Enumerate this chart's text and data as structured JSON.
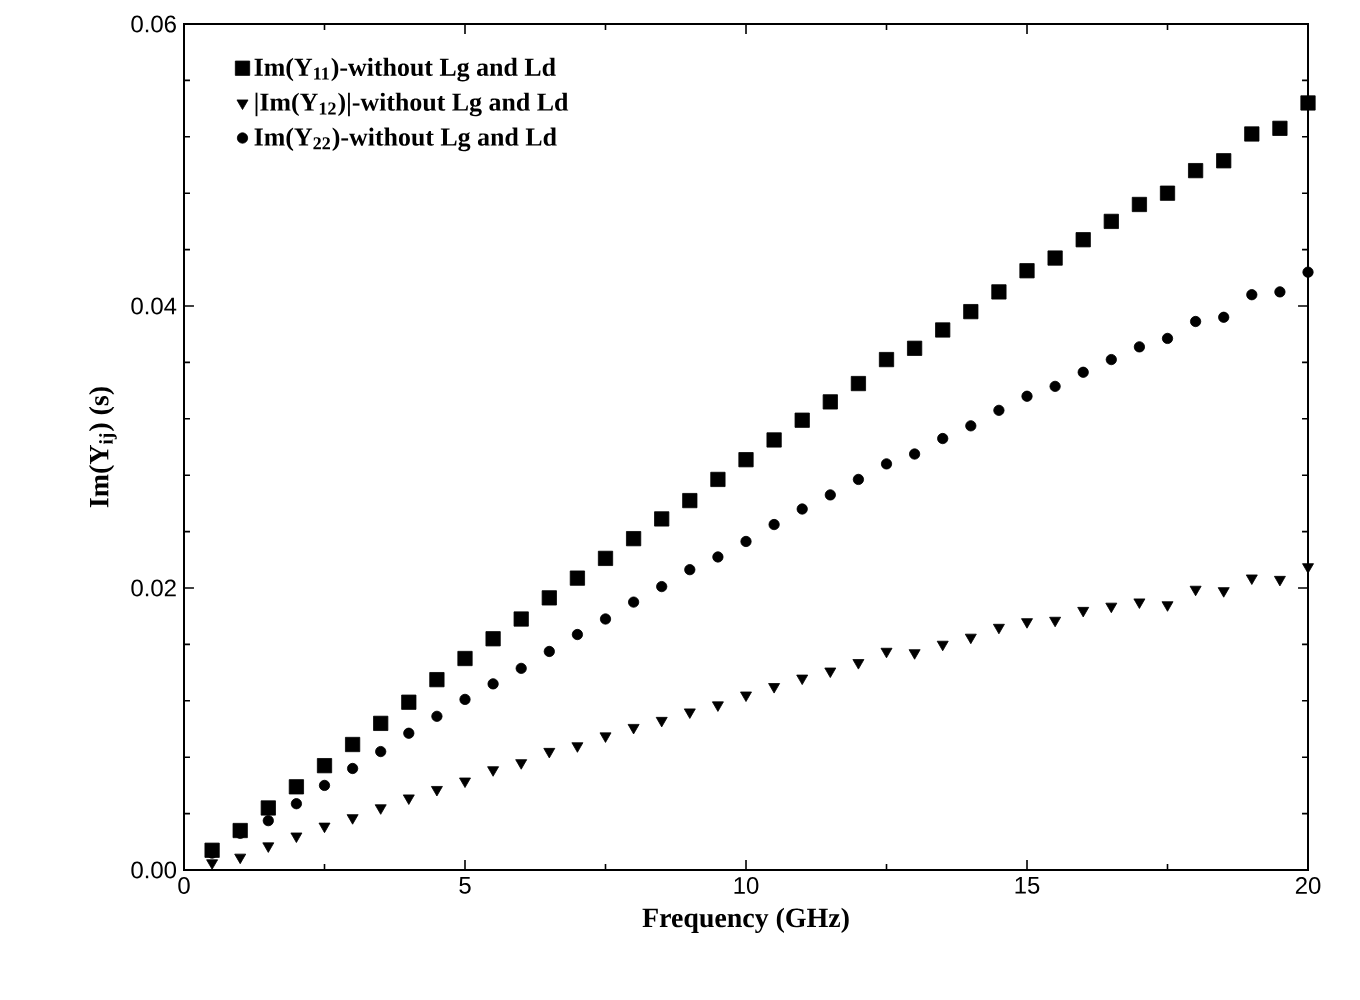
{
  "chart_data": {
    "type": "scatter",
    "xlabel": "Frequency (GHz)",
    "ylabel": "Im(Y$_{ij}$) (s)",
    "x": [
      0.5,
      1,
      1.5,
      2,
      2.5,
      3,
      3.5,
      4,
      4.5,
      5,
      5.5,
      6,
      6.5,
      7,
      7.5,
      8,
      8.5,
      9,
      9.5,
      10,
      10.5,
      11,
      11.5,
      12,
      12.5,
      13,
      13.5,
      14,
      14.5,
      15,
      15.5,
      16,
      16.5,
      17,
      17.5,
      18,
      18.5,
      19,
      19.5,
      20
    ],
    "series": [
      {
        "name": "Im(Y$_{11}$)-without Lg and Ld",
        "color": "#000000",
        "marker": "square",
        "values": [
          0.0014,
          0.0028,
          0.0044,
          0.0059,
          0.0074,
          0.0089,
          0.0104,
          0.0119,
          0.0135,
          0.015,
          0.0164,
          0.0178,
          0.0193,
          0.0207,
          0.0221,
          0.0235,
          0.0249,
          0.0262,
          0.0277,
          0.0291,
          0.0305,
          0.0319,
          0.0332,
          0.0345,
          0.0362,
          0.037,
          0.0383,
          0.0396,
          0.041,
          0.0425,
          0.0434,
          0.0447,
          0.046,
          0.0472,
          0.048,
          0.0496,
          0.0503,
          0.0522,
          0.0526,
          0.0544
        ]
      },
      {
        "name": "|Im(Y$_{12}$)|-without Lg and Ld",
        "color": "#000000",
        "marker": "triangle",
        "values": [
          0.0005,
          0.0009,
          0.0017,
          0.0024,
          0.0031,
          0.0037,
          0.0044,
          0.0051,
          0.0057,
          0.0063,
          0.0071,
          0.0076,
          0.0084,
          0.0088,
          0.0095,
          0.0101,
          0.0106,
          0.0112,
          0.0117,
          0.0124,
          0.013,
          0.0136,
          0.0141,
          0.0147,
          0.0155,
          0.0154,
          0.016,
          0.0165,
          0.0172,
          0.0176,
          0.0177,
          0.0184,
          0.0187,
          0.019,
          0.0188,
          0.0199,
          0.0198,
          0.0207,
          0.0206,
          0.0215
        ]
      },
      {
        "name": "Im(Y$_{22}$)-without Lg and Ld",
        "color": "#000000",
        "marker": "circle",
        "values": [
          0.0012,
          0.0026,
          0.0035,
          0.0047,
          0.006,
          0.0072,
          0.0084,
          0.0097,
          0.0109,
          0.0121,
          0.0132,
          0.0143,
          0.0155,
          0.0167,
          0.0178,
          0.019,
          0.0201,
          0.0213,
          0.0222,
          0.0233,
          0.0245,
          0.0256,
          0.0266,
          0.0277,
          0.0288,
          0.0295,
          0.0306,
          0.0315,
          0.0326,
          0.0336,
          0.0343,
          0.0353,
          0.0362,
          0.0371,
          0.0377,
          0.0389,
          0.0392,
          0.0408,
          0.041,
          0.0424
        ]
      }
    ],
    "xlim": [
      0,
      20
    ],
    "xticks": [
      0,
      5,
      10,
      15,
      20
    ],
    "ylim": [
      0,
      0.06
    ],
    "yticks": [
      {
        "value": 0,
        "label": "0.00"
      },
      {
        "value": 0.02,
        "label": "0.02"
      },
      {
        "value": 0.04,
        "label": "0.04"
      },
      {
        "value": 0.06,
        "label": "0.06"
      }
    ],
    "legend": "top left",
    "grid": false
  }
}
